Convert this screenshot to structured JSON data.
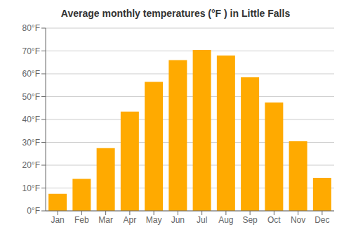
{
  "chart_data": {
    "type": "bar",
    "title": "Average monthly temperatures (°F ) in Little Falls",
    "categories": [
      "Jan",
      "Feb",
      "Mar",
      "Apr",
      "May",
      "Jun",
      "Jul",
      "Aug",
      "Sep",
      "Oct",
      "Nov",
      "Dec"
    ],
    "values": [
      7.5,
      14,
      27.5,
      43.5,
      56.5,
      66,
      70.5,
      68,
      58.5,
      47.5,
      30.5,
      14.5
    ],
    "color": "#FFAA00",
    "ylim": [
      0,
      80
    ],
    "yticks": [
      {
        "value": 0,
        "label": "0°F"
      },
      {
        "value": 10,
        "label": "10°F"
      },
      {
        "value": 20,
        "label": "20°F"
      },
      {
        "value": 30,
        "label": "30°F"
      },
      {
        "value": 40,
        "label": "40°F"
      },
      {
        "value": 50,
        "label": "50°F"
      },
      {
        "value": 60,
        "label": "60°F"
      },
      {
        "value": 70,
        "label": "70°F"
      },
      {
        "value": 80,
        "label": "80°F"
      }
    ],
    "grid": true
  }
}
